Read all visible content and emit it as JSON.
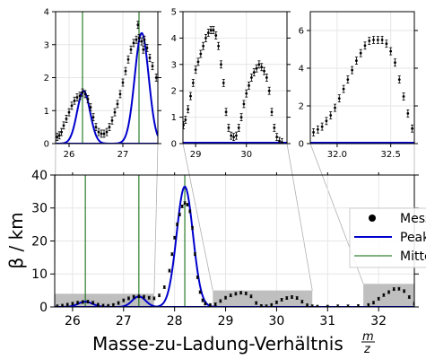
{
  "chart_data": {
    "type": "line",
    "xlabel_main": "Masse-zu-Ladung-Verhältnis",
    "xlabel_frac_num": "m",
    "xlabel_frac_den": "z",
    "ylabel_main": "β / km",
    "legend": {
      "placement": "right",
      "items": [
        "Messwerte",
        "Peak-Fit",
        "Mitte"
      ]
    },
    "colors": {
      "measured": "#000000",
      "fit": "#0000cc",
      "center": "#006400",
      "band": "#bfbfbf",
      "grid": "#e6e6e6"
    },
    "grid": true,
    "main": {
      "xlim": [
        25.65,
        32.7
      ],
      "ylim": [
        0,
        40
      ],
      "xticks": [
        26,
        27,
        28,
        29,
        30,
        31,
        32
      ],
      "xtick_labels": [
        "26",
        "27",
        "28",
        "29",
        "30",
        "31",
        "32"
      ],
      "yticks": [
        0,
        10,
        20,
        30,
        40
      ],
      "ytick_labels": [
        "0",
        "10",
        "20",
        "30",
        "40"
      ],
      "centers": [
        26.25,
        27.3,
        28.2
      ],
      "fits": [
        {
          "mu": 26.25,
          "sigma": 0.14,
          "amp": 1.6
        },
        {
          "mu": 27.3,
          "sigma": 0.13,
          "amp": 3.2
        },
        {
          "mu": 28.2,
          "sigma": 0.16,
          "amp": 36.5
        }
      ],
      "grey_bands": [
        {
          "x": [
            25.65,
            27.6
          ],
          "ymax": 4
        },
        {
          "x": [
            28.75,
            30.7
          ],
          "ymax": 5
        },
        {
          "x": [
            31.7,
            32.7
          ],
          "ymax": 7
        }
      ],
      "measured": [
        [
          25.7,
          0.2
        ],
        [
          25.8,
          0.4
        ],
        [
          25.9,
          0.7
        ],
        [
          26.0,
          1.0
        ],
        [
          26.1,
          1.3
        ],
        [
          26.2,
          1.5
        ],
        [
          26.3,
          1.6
        ],
        [
          26.4,
          1.3
        ],
        [
          26.5,
          0.7
        ],
        [
          26.6,
          0.4
        ],
        [
          26.7,
          0.35
        ],
        [
          26.8,
          0.6
        ],
        [
          26.9,
          1.2
        ],
        [
          27.0,
          2.0
        ],
        [
          27.1,
          2.6
        ],
        [
          27.2,
          3.1
        ],
        [
          27.3,
          3.2
        ],
        [
          27.4,
          3.1
        ],
        [
          27.5,
          2.8
        ],
        [
          27.6,
          2.6
        ],
        [
          27.7,
          3.5
        ],
        [
          27.8,
          6
        ],
        [
          27.9,
          11
        ],
        [
          27.95,
          16
        ],
        [
          28.0,
          21
        ],
        [
          28.05,
          25
        ],
        [
          28.1,
          28
        ],
        [
          28.15,
          30.5
        ],
        [
          28.2,
          31.5
        ],
        [
          28.25,
          31
        ],
        [
          28.3,
          29
        ],
        [
          28.35,
          24
        ],
        [
          28.4,
          16
        ],
        [
          28.45,
          9
        ],
        [
          28.5,
          4.5
        ],
        [
          28.55,
          2
        ],
        [
          28.6,
          1
        ],
        [
          28.7,
          0.6
        ],
        [
          28.8,
          0.8
        ],
        [
          28.9,
          1.8
        ],
        [
          29.0,
          2.8
        ],
        [
          29.1,
          3.5
        ],
        [
          29.2,
          4.0
        ],
        [
          29.3,
          4.3
        ],
        [
          29.4,
          4.1
        ],
        [
          29.5,
          3.2
        ],
        [
          29.6,
          1.2
        ],
        [
          29.7,
          0.3
        ],
        [
          29.8,
          0.2
        ],
        [
          29.9,
          0.6
        ],
        [
          30.0,
          1.4
        ],
        [
          30.1,
          2.2
        ],
        [
          30.2,
          2.7
        ],
        [
          30.3,
          3.0
        ],
        [
          30.4,
          2.7
        ],
        [
          30.5,
          1.6
        ],
        [
          30.6,
          0.5
        ],
        [
          30.7,
          0.2
        ],
        [
          30.8,
          0.1
        ],
        [
          31.0,
          0.1
        ],
        [
          31.2,
          0.2
        ],
        [
          31.4,
          0.2
        ],
        [
          31.6,
          0.3
        ],
        [
          31.8,
          0.6
        ],
        [
          31.9,
          1.3
        ],
        [
          32.0,
          2.5
        ],
        [
          32.1,
          3.6
        ],
        [
          32.2,
          4.5
        ],
        [
          32.3,
          5.4
        ],
        [
          32.4,
          5.5
        ],
        [
          32.5,
          4.8
        ],
        [
          32.6,
          3.0
        ],
        [
          32.7,
          1.0
        ]
      ]
    },
    "insets": [
      {
        "xlim": [
          25.75,
          27.65
        ],
        "ylim": [
          0,
          4
        ],
        "xticks": [
          26,
          27
        ],
        "xtick_labels": [
          "26",
          "27"
        ],
        "yticks": [
          0,
          1,
          2,
          3,
          4
        ],
        "ytick_labels": [
          "0",
          "1",
          "2",
          "3",
          "4"
        ],
        "centers": [
          26.25,
          27.3
        ],
        "fits": [
          {
            "mu": 26.27,
            "sigma": 0.12,
            "amp": 1.6
          },
          {
            "mu": 27.35,
            "sigma": 0.13,
            "amp": 3.35
          }
        ],
        "measured": [
          [
            25.78,
            0.2
          ],
          [
            25.82,
            0.25
          ],
          [
            25.86,
            0.35
          ],
          [
            25.9,
            0.55
          ],
          [
            25.95,
            0.75
          ],
          [
            26.0,
            0.95
          ],
          [
            26.05,
            1.15
          ],
          [
            26.1,
            1.3
          ],
          [
            26.15,
            1.4
          ],
          [
            26.2,
            1.45
          ],
          [
            26.25,
            1.55
          ],
          [
            26.3,
            1.5
          ],
          [
            26.35,
            1.35
          ],
          [
            26.4,
            1.1
          ],
          [
            26.45,
            0.8
          ],
          [
            26.5,
            0.5
          ],
          [
            26.55,
            0.35
          ],
          [
            26.6,
            0.3
          ],
          [
            26.65,
            0.3
          ],
          [
            26.7,
            0.35
          ],
          [
            26.75,
            0.5
          ],
          [
            26.8,
            0.7
          ],
          [
            26.85,
            0.95
          ],
          [
            26.9,
            1.2
          ],
          [
            26.95,
            1.5
          ],
          [
            27.0,
            1.85
          ],
          [
            27.05,
            2.2
          ],
          [
            27.1,
            2.55
          ],
          [
            27.15,
            2.85
          ],
          [
            27.2,
            3.05
          ],
          [
            27.25,
            3.15
          ],
          [
            27.3,
            3.2
          ],
          [
            27.35,
            3.1
          ],
          [
            27.4,
            3.15
          ],
          [
            27.45,
            2.9
          ],
          [
            27.5,
            2.6
          ],
          [
            27.55,
            2.35
          ],
          [
            27.62,
            2.0
          ]
        ],
        "outliers": [
          [
            27.28,
            3.6
          ],
          [
            27.38,
            2.85
          ]
        ]
      },
      {
        "xlim": [
          28.75,
          30.8
        ],
        "ylim": [
          0,
          5
        ],
        "xticks": [
          29,
          30
        ],
        "xtick_labels": [
          "29",
          "30"
        ],
        "yticks": [
          0,
          1,
          2,
          3,
          4,
          5
        ],
        "ytick_labels": [
          "0",
          "1",
          "2",
          "3",
          "4",
          "5"
        ],
        "centers": [],
        "fits": [],
        "measured": [
          [
            28.76,
            0.7
          ],
          [
            28.8,
            0.9
          ],
          [
            28.85,
            1.3
          ],
          [
            28.9,
            1.8
          ],
          [
            28.95,
            2.3
          ],
          [
            29.0,
            2.8
          ],
          [
            29.05,
            3.1
          ],
          [
            29.1,
            3.4
          ],
          [
            29.15,
            3.7
          ],
          [
            29.2,
            4.0
          ],
          [
            29.25,
            4.2
          ],
          [
            29.3,
            4.3
          ],
          [
            29.35,
            4.3
          ],
          [
            29.4,
            4.1
          ],
          [
            29.45,
            3.7
          ],
          [
            29.5,
            3.0
          ],
          [
            29.55,
            2.3
          ],
          [
            29.6,
            1.2
          ],
          [
            29.65,
            0.6
          ],
          [
            29.7,
            0.3
          ],
          [
            29.75,
            0.25
          ],
          [
            29.8,
            0.3
          ],
          [
            29.85,
            0.6
          ],
          [
            29.9,
            1.0
          ],
          [
            29.95,
            1.5
          ],
          [
            30.0,
            1.9
          ],
          [
            30.05,
            2.2
          ],
          [
            30.1,
            2.5
          ],
          [
            30.15,
            2.7
          ],
          [
            30.2,
            2.85
          ],
          [
            30.25,
            3.0
          ],
          [
            30.3,
            2.9
          ],
          [
            30.35,
            2.75
          ],
          [
            30.4,
            2.5
          ],
          [
            30.45,
            2.0
          ],
          [
            30.5,
            1.2
          ],
          [
            30.55,
            0.6
          ],
          [
            30.6,
            0.25
          ],
          [
            30.65,
            0.1
          ],
          [
            30.7,
            0.05
          ]
        ],
        "outliers": []
      },
      {
        "xlim": [
          31.75,
          32.72
        ],
        "ylim": [
          0,
          7
        ],
        "xticks": [
          32.0,
          32.5
        ],
        "xtick_labels": [
          "32.0",
          "32.5"
        ],
        "yticks": [
          0,
          2,
          4,
          6
        ],
        "ytick_labels": [
          "0",
          "2",
          "4",
          "6"
        ],
        "centers": [],
        "fits": [],
        "measured": [
          [
            31.78,
            0.6
          ],
          [
            31.82,
            0.75
          ],
          [
            31.86,
            0.9
          ],
          [
            31.9,
            1.2
          ],
          [
            31.94,
            1.5
          ],
          [
            31.98,
            1.9
          ],
          [
            32.02,
            2.4
          ],
          [
            32.06,
            2.9
          ],
          [
            32.1,
            3.4
          ],
          [
            32.14,
            3.9
          ],
          [
            32.18,
            4.4
          ],
          [
            32.22,
            4.8
          ],
          [
            32.26,
            5.2
          ],
          [
            32.3,
            5.45
          ],
          [
            32.34,
            5.5
          ],
          [
            32.38,
            5.5
          ],
          [
            32.42,
            5.5
          ],
          [
            32.46,
            5.3
          ],
          [
            32.5,
            4.9
          ],
          [
            32.54,
            4.3
          ],
          [
            32.58,
            3.4
          ],
          [
            32.62,
            2.5
          ],
          [
            32.66,
            1.6
          ],
          [
            32.7,
            0.8
          ]
        ],
        "outliers": []
      }
    ]
  }
}
